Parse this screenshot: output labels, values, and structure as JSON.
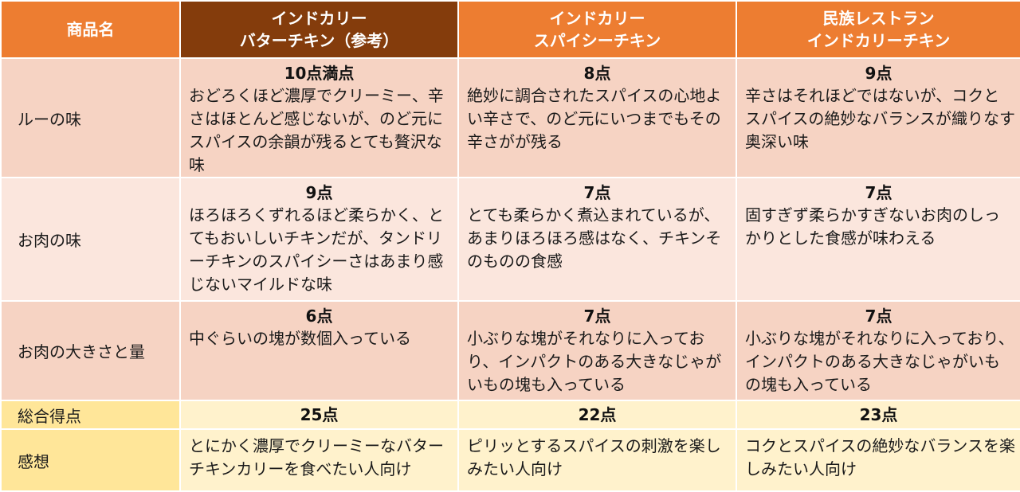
{
  "header": {
    "product_label": "商品名",
    "columns": [
      {
        "line1": "インドカリー",
        "line2": "バターチキン（参考）"
      },
      {
        "line1": "インドカリー",
        "line2": "スパイシーチキン"
      },
      {
        "line1": "民族レストラン",
        "line2": "インドカリーチキン"
      }
    ]
  },
  "rows": [
    {
      "label": "ルーの味",
      "cells": [
        {
          "score": "10点満点",
          "text": "おどろくほど濃厚でクリーミー、辛さはほとんど感じないが、のど元にスパイスの余韻が残るとても贅沢な味"
        },
        {
          "score": "8点",
          "text": "絶妙に調合されたスパイスの心地よい辛さで、のど元にいつまでもその辛さがが残る"
        },
        {
          "score": "9点",
          "text": "辛さはそれほどではないが、コクとスパイスの絶妙なバランスが織りなす奥深い味"
        }
      ]
    },
    {
      "label": "お肉の味",
      "cells": [
        {
          "score": "9点",
          "text": "ほろほろくずれるほど柔らかく、とてもおいしいチキンだが、タンドリーチキンのスパイシーさはあまり感じないマイルドな味"
        },
        {
          "score": "7点",
          "text": "とても柔らかく煮込まれているが、あまりほろほろ感はなく、チキンそのものの食感"
        },
        {
          "score": "7点",
          "text": "固すぎず柔らかすぎないお肉のしっかりとした食感が味わえる"
        }
      ]
    },
    {
      "label": "お肉の大きさと量",
      "cells": [
        {
          "score": "6点",
          "text": "中ぐらいの塊が数個入っている"
        },
        {
          "score": "7点",
          "text": "小ぶりな塊がそれなりに入っており、インパクトのある大きなじゃがいもの塊も入っている"
        },
        {
          "score": "7点",
          "text": "小ぶりな塊がそれなりに入っており、インパクトのある大きなじゃがいもの塊も入っている"
        }
      ]
    },
    {
      "label": "総合得点",
      "cells": [
        {
          "score": "25点"
        },
        {
          "score": "22点"
        },
        {
          "score": "23点"
        }
      ]
    },
    {
      "label": "感想",
      "cells": [
        {
          "text": "とにかく濃厚でクリーミーなバターチキンカリーを食べたい人向け"
        },
        {
          "text": "ピリッとするスパイスの刺激を楽しみたい人向け"
        },
        {
          "text": "コクとスパイスの絶妙なバランスを楽しみたい人向け"
        }
      ]
    }
  ],
  "colors": {
    "header_orange": "#ed7d31",
    "header_brown": "#843c0c",
    "row_salmon": "#f6d3c3",
    "row_light": "#fbe6dd",
    "row_yellow": "#fff2cc",
    "label_yellow": "#ffe699"
  }
}
